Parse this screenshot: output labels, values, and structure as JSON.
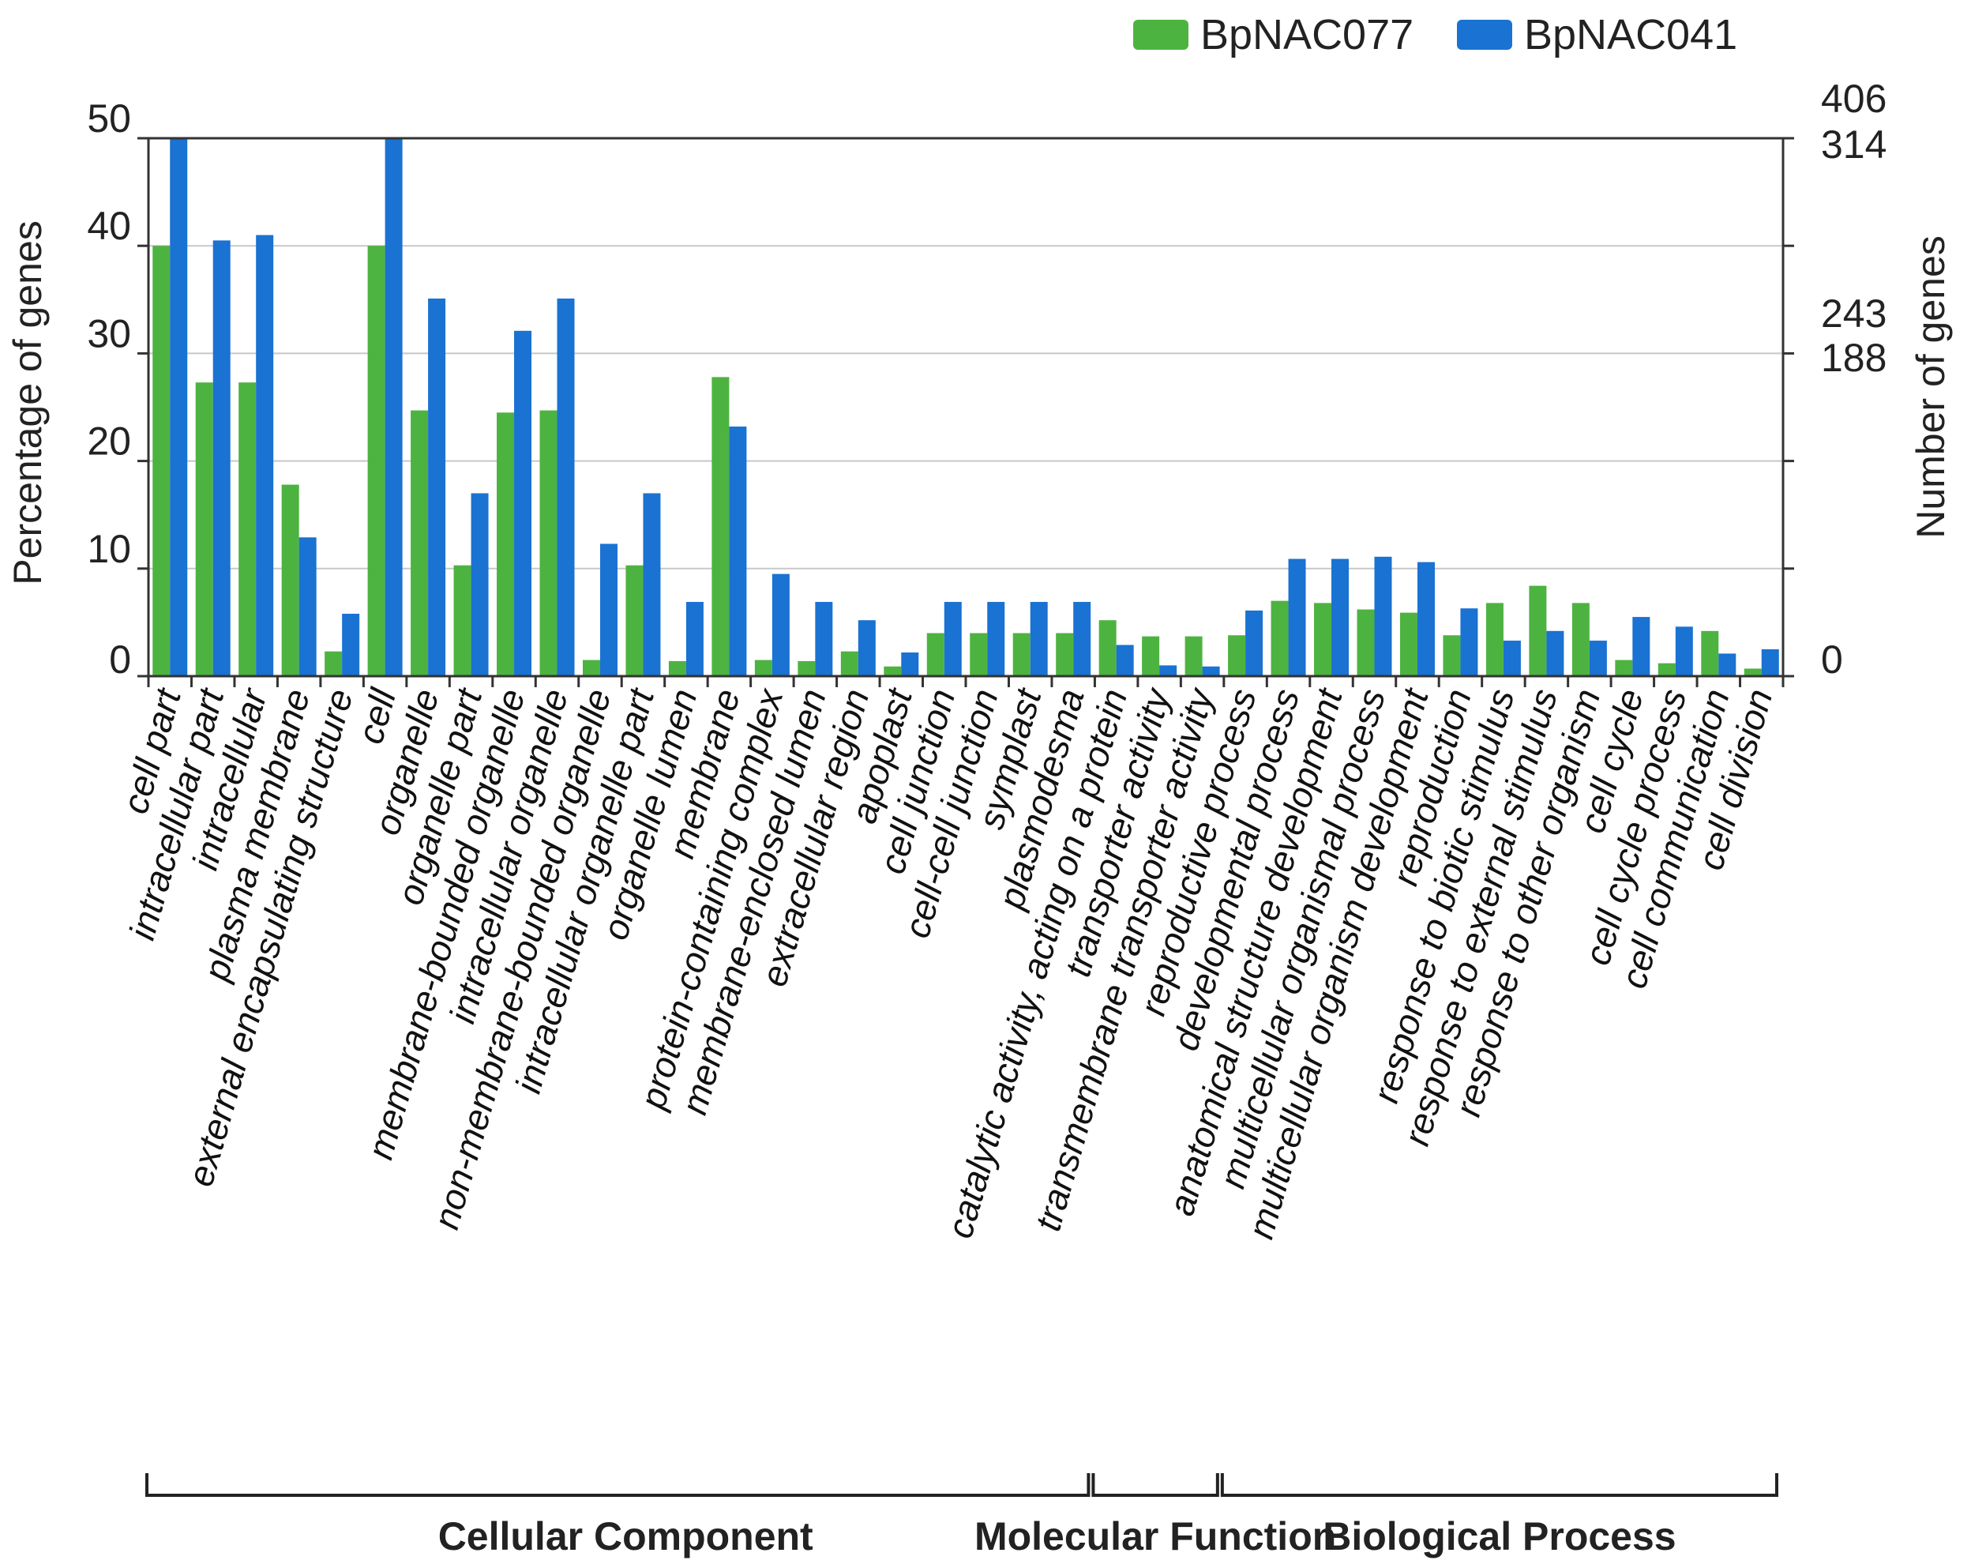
{
  "chart_data": {
    "type": "bar",
    "ylabel_left": "Percentage of genes",
    "ylabel_right": "Number of genes",
    "y_left_ticks": [
      "0",
      "10",
      "20",
      "30",
      "40",
      "50"
    ],
    "ylim": [
      0,
      50
    ],
    "y_right_ticks": [
      "406",
      "314",
      "243",
      "188",
      "0"
    ],
    "legend": [
      {
        "name": "BpNAC077",
        "color": "#4db340"
      },
      {
        "name": "BpNAC041",
        "color": "#1a72d2"
      }
    ],
    "categories": [
      "cell part",
      "intracellular part",
      "intracellular",
      "plasma membrane",
      "external encapsulating structure",
      "cell",
      "organelle",
      "organelle part",
      "membrane-bounded organelle",
      "intracellular organelle",
      "non-membrane-bounded organelle",
      "intracellular organelle part",
      "organelle lumen",
      "membrane",
      "protein-containing complex",
      "membrane-enclosed lumen",
      "extracellular region",
      "apoplast",
      "cell junction",
      "cell-cell junction",
      "symplast",
      "plasmodesma",
      "catalytic activity, acting on a protein",
      "transporter activity",
      "transmembrane transporter activity",
      "reproductive process",
      "developmental process",
      "anatomical structure development",
      "multicellular organismal process",
      "multicellular organism development",
      "reproduction",
      "response to biotic stimulus",
      "response to external stimulus",
      "response to other organism",
      "cell cycle",
      "cell cycle process",
      "cell communication",
      "cell division"
    ],
    "series": [
      {
        "name": "BpNAC077",
        "values": [
          40,
          27.3,
          27.3,
          17.8,
          2.3,
          40,
          24.7,
          10.3,
          24.5,
          24.7,
          1.5,
          10.3,
          1.4,
          27.8,
          1.5,
          1.4,
          2.3,
          0.9,
          4.0,
          4.0,
          4.0,
          4.0,
          5.2,
          3.7,
          3.7,
          3.8,
          7.0,
          6.8,
          6.2,
          5.9,
          3.8,
          6.8,
          8.4,
          6.8,
          1.5,
          1.2,
          4.2,
          0.7
        ]
      },
      {
        "name": "BpNAC041",
        "values": [
          50,
          40.5,
          41,
          12.9,
          5.8,
          50,
          35.1,
          17,
          32.1,
          35.1,
          12.3,
          17,
          6.9,
          23.2,
          9.5,
          6.9,
          5.2,
          2.2,
          6.9,
          6.9,
          6.9,
          6.9,
          2.9,
          1.0,
          0.9,
          6.1,
          10.9,
          10.9,
          11.1,
          10.6,
          6.3,
          3.3,
          4.2,
          3.3,
          5.5,
          4.6,
          2.1,
          2.5
        ]
      }
    ],
    "groups": [
      {
        "label": "Cellular Component",
        "start": 0,
        "end": 21
      },
      {
        "label": "Molecular Function",
        "start": 22,
        "end": 24
      },
      {
        "label": "Biological Process",
        "start": 25,
        "end": 37
      }
    ]
  }
}
